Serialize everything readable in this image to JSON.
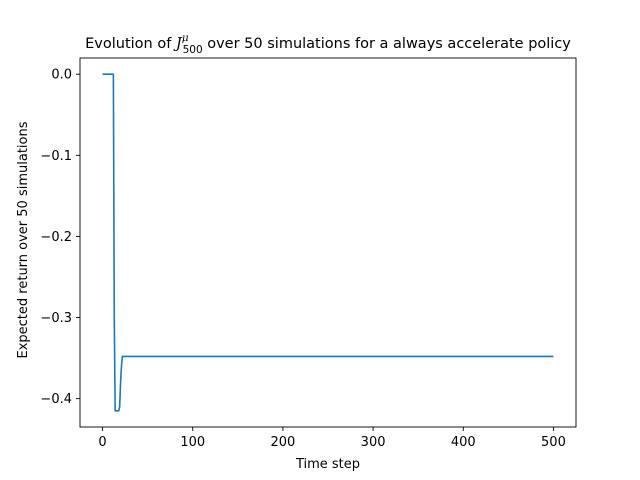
{
  "chart_data": {
    "type": "line",
    "title_prefix": "Evolution of ",
    "title_symbol": "J",
    "title_superscript": "μ",
    "title_subscript": "500",
    "title_suffix": " over 50 simulations for a always accelerate policy",
    "xlabel": "Time step",
    "ylabel": "Expected return over 50 simulations",
    "xlim": [
      -25,
      525
    ],
    "ylim": [
      -0.435,
      0.02
    ],
    "xticks": [
      0,
      100,
      200,
      300,
      400,
      500
    ],
    "xtick_labels": [
      "0",
      "100",
      "200",
      "300",
      "400",
      "500"
    ],
    "yticks": [
      0.0,
      -0.1,
      -0.2,
      -0.3,
      -0.4
    ],
    "ytick_labels": [
      "0.0",
      "−0.1",
      "−0.2",
      "−0.3",
      "−0.4"
    ],
    "grid": false,
    "line_color": "#1f77b4",
    "series": [
      {
        "name": "Expected return",
        "x": [
          0,
          12,
          13,
          14,
          17,
          18,
          19,
          20,
          21,
          22,
          500
        ],
        "y": [
          0.0,
          0.0,
          -0.3,
          -0.415,
          -0.415,
          -0.415,
          -0.41,
          -0.38,
          -0.36,
          -0.348,
          -0.348
        ]
      }
    ]
  }
}
